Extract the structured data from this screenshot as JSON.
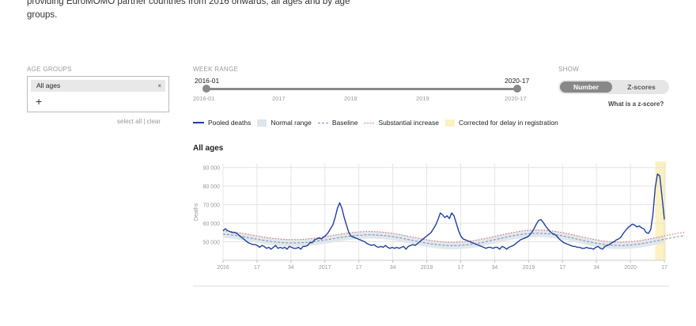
{
  "intro": {
    "line1": "providing EuroMOMO partner countries from 2016 onwards, all ages and by age",
    "line2": "groups."
  },
  "age_groups": {
    "label": "AGE GROUPS",
    "selected": "All ages",
    "remove_glyph": "×",
    "add_glyph": "+",
    "select_all": "select all",
    "separator": "|",
    "clear": "clear"
  },
  "week_range": {
    "label": "WEEK RANGE",
    "start": "2016-01",
    "end": "2020-17",
    "ticks": [
      "2016-01",
      "2017",
      "2018",
      "2019",
      "2020-17"
    ]
  },
  "show": {
    "label": "SHOW",
    "options": [
      "Number",
      "Z-scores"
    ],
    "active": "Number",
    "help_link": "What is a z-score?"
  },
  "legend": [
    {
      "label": "Pooled deaths",
      "color": "#1f3f9f"
    },
    {
      "label": "Normal range",
      "color": "#dfe4ea"
    },
    {
      "label": "Baseline",
      "color": "#6f8fb0"
    },
    {
      "label": "Substantial increase",
      "color": "#e06060"
    },
    {
      "label": "Corrected for delay in registration",
      "color": "#fbf1c2"
    }
  ],
  "chart_data": {
    "type": "line",
    "title": "All ages",
    "ylabel": "Deaths",
    "ylim": [
      40000,
      92000
    ],
    "yticks": [
      50000,
      60000,
      70000,
      80000,
      90000
    ],
    "ytick_labels": [
      "50 000",
      "60 000",
      "70 000",
      "80 000",
      "90 000"
    ],
    "x_tick_labels": [
      "2016",
      "17",
      "34",
      "2017",
      "17",
      "34",
      "2018",
      "17",
      "34",
      "2019",
      "17",
      "34",
      "2020",
      "17"
    ],
    "delay_correction_weeks": 4,
    "series": [
      {
        "name": "Pooled deaths",
        "color": "#1f3f9f",
        "values": [
          56000,
          57000,
          56000,
          55500,
          55000,
          55000,
          54500,
          53500,
          52500,
          51500,
          50500,
          49500,
          49000,
          48500,
          48500,
          48000,
          47000,
          48000,
          47500,
          46500,
          47000,
          46000,
          47000,
          48000,
          46500,
          47000,
          46500,
          47000,
          46000,
          47500,
          47000,
          46500,
          46500,
          47000,
          46000,
          47500,
          47500,
          48000,
          49500,
          49500,
          51000,
          51500,
          52000,
          51500,
          52500,
          53500,
          55000,
          57000,
          59000,
          63000,
          68000,
          71000,
          68000,
          63000,
          59000,
          55000,
          53000,
          52500,
          52000,
          51500,
          51000,
          50500,
          50000,
          49000,
          48500,
          48000,
          48500,
          47500,
          47000,
          47500,
          47000,
          48000,
          47000,
          46500,
          47000,
          46500,
          47000,
          46500,
          47000,
          47500,
          46000,
          47500,
          48000,
          48500,
          48000,
          49000,
          50000,
          51000,
          52000,
          53000,
          54000,
          55000,
          57000,
          59000,
          62000,
          65500,
          64500,
          63000,
          64000,
          62500,
          65500,
          64000,
          60000,
          56000,
          53000,
          51500,
          51000,
          50500,
          50000,
          49500,
          49000,
          48500,
          48000,
          47500,
          47000,
          46500,
          47000,
          47000,
          46500,
          47000,
          47000,
          46000,
          47500,
          47000,
          46000,
          47000,
          47500,
          48000,
          49000,
          50000,
          51000,
          51500,
          52000,
          52500,
          53500,
          55000,
          57000,
          59500,
          61500,
          62000,
          60500,
          58500,
          57000,
          55500,
          54500,
          54000,
          53000,
          51500,
          50500,
          49500,
          49000,
          48500,
          48000,
          47500,
          47500,
          47000,
          47000,
          46500,
          46500,
          47000,
          46500,
          46500,
          46000,
          47000,
          47500,
          46500,
          46000,
          47500,
          48000,
          48500,
          49500,
          50000,
          51000,
          51500,
          52500,
          54500,
          56000,
          57500,
          58500,
          59500,
          59000,
          58000,
          58500,
          57500,
          57000,
          55000,
          54500,
          56500,
          64500,
          79000,
          86500,
          85500,
          74000,
          62000
        ]
      },
      {
        "name": "Baseline",
        "color": "#6f8fb0",
        "values": [
          54125,
          54016,
          53889,
          53747,
          53590,
          53420,
          53239,
          53048,
          52848,
          52640,
          52426,
          52208,
          51987,
          51766,
          51546,
          51329,
          51117,
          50910,
          50711,
          50522,
          50343,
          50176,
          50021,
          49881,
          49756,
          49647,
          49555,
          49480,
          49423,
          49384,
          49364,
          49363,
          49380,
          49415,
          49469,
          49540,
          49628,
          49733,
          49853,
          49987,
          50135,
          50295,
          50465,
          50645,
          50833,
          51027,
          51226,
          51428,
          51631,
          51834,
          52034,
          52230,
          52421,
          52604,
          52778,
          52941,
          53091,
          53228,
          53350,
          53456,
          53545,
          53616,
          53668,
          53701,
          53714,
          53707,
          53680,
          53633,
          53567,
          53480,
          53374,
          53250,
          53108,
          52948,
          52773,
          52582,
          52378,
          52162,
          51935,
          51699,
          51456,
          51208,
          50956,
          50703,
          50451,
          50201,
          49956,
          49717,
          49487,
          49267,
          49059,
          48864,
          48685,
          48523,
          48378,
          48252,
          48146,
          48061,
          47997,
          47954,
          47934,
          47936,
          47960,
          48006,
          48074,
          48164,
          48275,
          48406,
          48556,
          48725,
          48912,
          49115,
          49334,
          49566,
          49811,
          50066,
          50330,
          50601,
          50877,
          51157,
          51437,
          51717,
          51994,
          52266,
          52531,
          52786,
          53031,
          53263,
          53480,
          53680,
          53862,
          54025,
          54166,
          54286,
          54382,
          54455,
          54503,
          54526,
          54525,
          54498,
          54447,
          54372,
          54273,
          54151,
          54008,
          53844,
          53660,
          53458,
          53240,
          53007,
          52761,
          52503,
          52236,
          51962,
          51683,
          51401,
          51119,
          50837,
          50559,
          50287,
          50022,
          49767,
          49523,
          49292,
          49077,
          48877,
          48696,
          48534,
          48393,
          48273,
          48175,
          48099,
          48047,
          48018,
          48013,
          48031,
          48072,
          48136,
          48223,
          48331,
          48459,
          48607,
          48772,
          48955,
          49153,
          49366,
          49590,
          49826,
          50069,
          50320,
          50576,
          50835,
          51095,
          51354,
          51610,
          51861,
          52105,
          52340,
          52564,
          52776,
          52973,
          53154,
          53319
        ]
      },
      {
        "name": "Substantial increase",
        "color": "#e06060",
        "values": [
          55925,
          55816,
          55689,
          55547,
          55390,
          55220,
          55039,
          54848,
          54648,
          54440,
          54226,
          54008,
          53787,
          53566,
          53346,
          53129,
          52917,
          52710,
          52511,
          52322,
          52143,
          51976,
          51821,
          51681,
          51556,
          51447,
          51355,
          51280,
          51223,
          51184,
          51164,
          51163,
          51180,
          51215,
          51269,
          51340,
          51428,
          51533,
          51653,
          51787,
          51935,
          52095,
          52265,
          52445,
          52633,
          52827,
          53026,
          53228,
          53431,
          53634,
          53834,
          54030,
          54221,
          54404,
          54578,
          54741,
          54891,
          55028,
          55150,
          55256,
          55345,
          55416,
          55468,
          55501,
          55514,
          55507,
          55480,
          55433,
          55367,
          55280,
          55174,
          55050,
          54908,
          54748,
          54573,
          54382,
          54178,
          53962,
          53735,
          53499,
          53256,
          53008,
          52756,
          52503,
          52251,
          52001,
          51756,
          51517,
          51287,
          51067,
          50859,
          50664,
          50485,
          50323,
          50178,
          50052,
          49946,
          49861,
          49797,
          49754,
          49734,
          49736,
          49760,
          49806,
          49874,
          49964,
          50075,
          50206,
          50356,
          50525,
          50712,
          50915,
          51134,
          51366,
          51611,
          51866,
          52130,
          52401,
          52677,
          52957,
          53237,
          53517,
          53794,
          54066,
          54331,
          54586,
          54831,
          55063,
          55280,
          55480,
          55662,
          55825,
          55966,
          56086,
          56182,
          56255,
          56303,
          56326,
          56325,
          56298,
          56247,
          56172,
          56073,
          55951,
          55808,
          55644,
          55460,
          55258,
          55040,
          54807,
          54561,
          54303,
          54036,
          53762,
          53483,
          53201,
          52919,
          52637,
          52359,
          52087,
          51822,
          51567,
          51323,
          51092,
          50877,
          50677,
          50496,
          50334,
          50193,
          50073,
          49975,
          49899,
          49847,
          49818,
          49813,
          49831,
          49872,
          49936,
          50023,
          50131,
          50259,
          50407,
          50572,
          50755,
          50953,
          51166,
          51390,
          51626,
          51869,
          52120,
          52376,
          52635,
          52895,
          53154,
          53410,
          53661,
          53905,
          54140,
          54364,
          54576,
          54773,
          54954,
          55119
        ]
      }
    ]
  }
}
